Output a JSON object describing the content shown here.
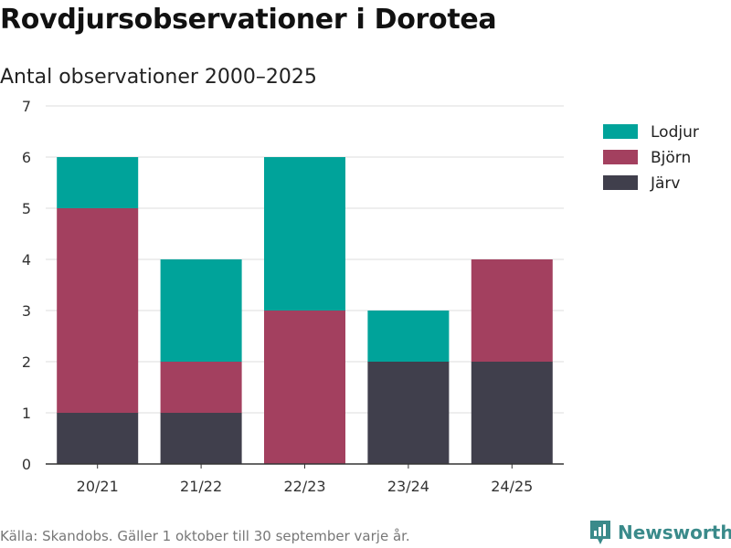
{
  "title": "Rovdjursobservationer i Dorotea",
  "subtitle": "Antal observationer 2000–2025",
  "footer": "Källa: Skandobs. Gäller 1 oktober till 30 september varje år.",
  "brand": "Newsworthy",
  "chart_data": {
    "type": "bar",
    "stacked": true,
    "title": "Rovdjursobservationer i Dorotea",
    "subtitle": "Antal observationer 2000–2025",
    "xlabel": "",
    "ylabel": "",
    "ylim": [
      0,
      7
    ],
    "yticks": [
      0,
      1,
      2,
      3,
      4,
      5,
      6,
      7
    ],
    "grid": true,
    "legend_position": "top-right",
    "categories": [
      "20/21",
      "21/22",
      "22/23",
      "23/24",
      "24/25"
    ],
    "series": [
      {
        "name": "Järv",
        "color": "#403f4c",
        "values": [
          1,
          1,
          0,
          2,
          2
        ]
      },
      {
        "name": "Björn",
        "color": "#a3405f",
        "values": [
          4,
          1,
          3,
          0,
          2
        ]
      },
      {
        "name": "Lodjur",
        "color": "#00a39a",
        "values": [
          1,
          2,
          3,
          1,
          0
        ]
      }
    ],
    "legend_order": [
      "Lodjur",
      "Björn",
      "Järv"
    ]
  }
}
